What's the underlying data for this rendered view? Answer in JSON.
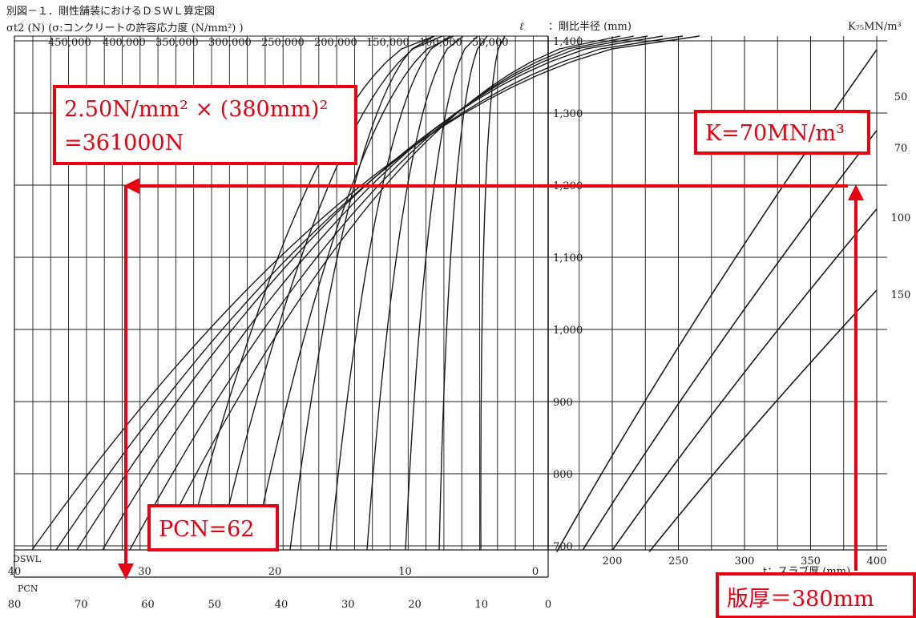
{
  "chart_data": {
    "type": "line",
    "title": "別図－１．剛性舗装におけるＤＳＷＬ算定図",
    "left_chart": {
      "top_axis_label": "σt2 (N) (σ:コンクリートの許容応力度 (N/mm²) )",
      "top_ticks": [
        "450,000",
        "400,000",
        "350,000",
        "300,000",
        "250,000",
        "200,000",
        "150,000",
        "100,000",
        "50,000"
      ],
      "dswl_label": "DSWL",
      "dswl_ticks": [
        "40",
        "30",
        "20",
        "10",
        "0"
      ],
      "pcn_label": "PCN",
      "pcn_ticks": [
        "80",
        "70",
        "60",
        "50",
        "40",
        "30",
        "20",
        "10",
        "0"
      ]
    },
    "center_axis": {
      "symbol": "ℓ",
      "label": "：剛比半径 (mm)",
      "ticks": [
        "1,400",
        "1,300",
        "1,200",
        "1,100",
        "1,000",
        "900",
        "800",
        "700"
      ],
      "range": [
        700,
        1400
      ]
    },
    "right_chart": {
      "k_label": "K₇₅MN/m³",
      "series": [
        {
          "name": "50",
          "k": 50
        },
        {
          "name": "70",
          "k": 70
        },
        {
          "name": "100",
          "k": 100
        },
        {
          "name": "150",
          "k": 150
        }
      ],
      "x_ticks": [
        "200",
        "250",
        "300",
        "350",
        "400"
      ],
      "x_label": "t：スラブ厚 (mm)",
      "xlim": [
        150,
        400
      ]
    },
    "grid": true
  },
  "annotations": {
    "stress_calc_line1": "2.50N/mm² × (380mm)²",
    "stress_calc_line2": "=361000N",
    "k_value": "K=70MN/m³",
    "pcn_result": "PCN=62",
    "slab_thickness": "版厚＝380mm"
  },
  "colors": {
    "annotation": "#e60012",
    "ink": "#1a1a1a"
  }
}
